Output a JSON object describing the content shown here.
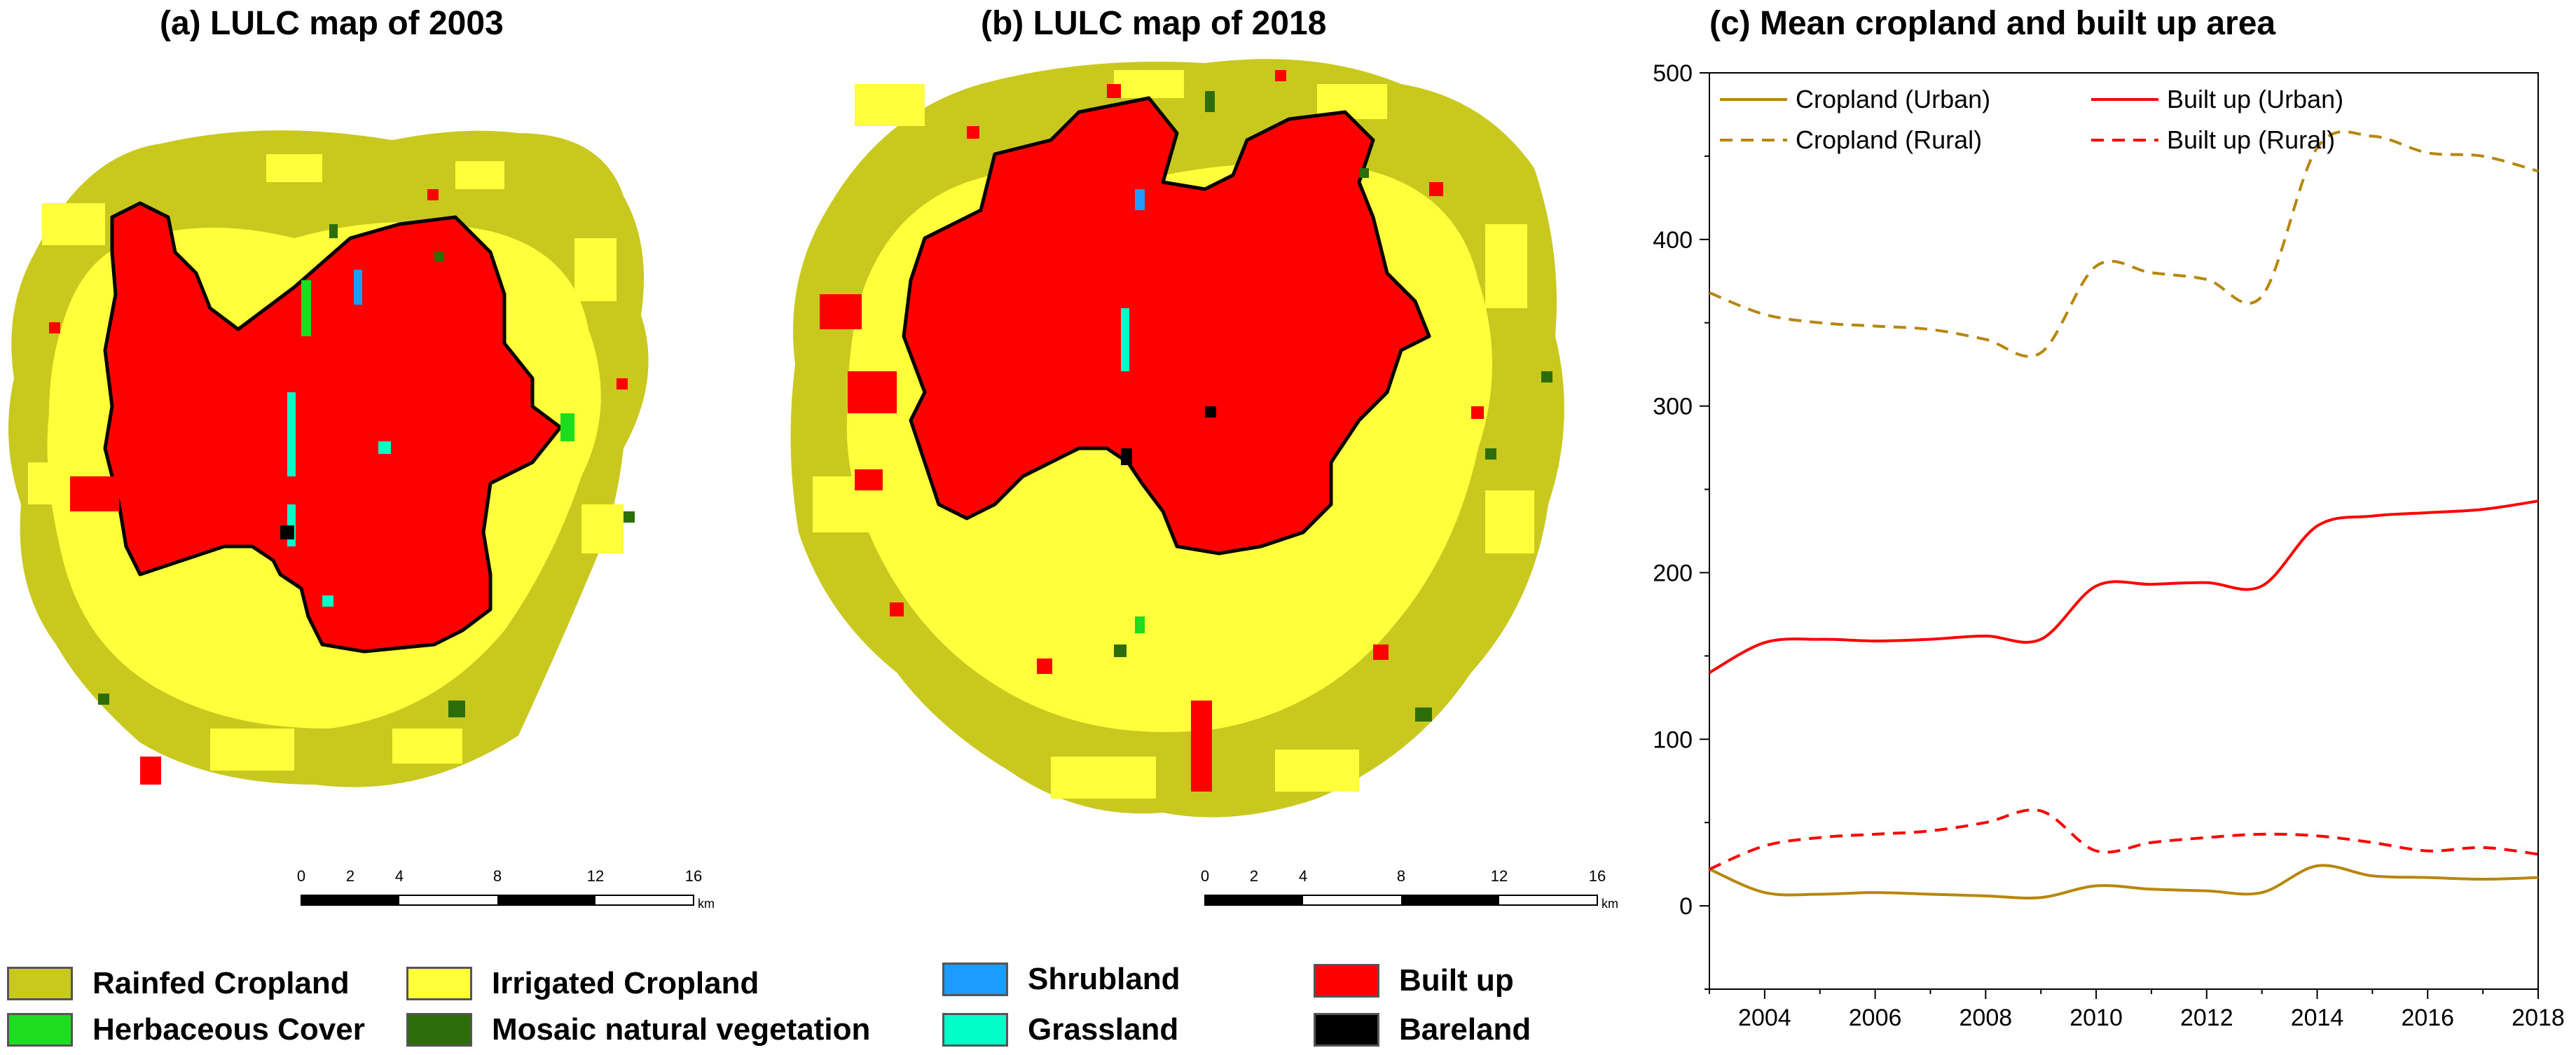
{
  "panels": {
    "a_title": "(a) LULC map of 2003",
    "b_title": "(b) LULC map of 2018",
    "c_title": "(c) Mean cropland and built up area"
  },
  "scale_bar": {
    "ticks": [
      "0",
      "2",
      "4",
      "8",
      "12",
      "16"
    ],
    "unit": "km"
  },
  "legend": [
    {
      "label": "Rainfed Cropland",
      "color": "#c8c81e"
    },
    {
      "label": "Irrigated Cropland",
      "color": "#ffff3c"
    },
    {
      "label": "Shrubland",
      "color": "#1e9bff"
    },
    {
      "label": "Built up",
      "color": "#ff0000"
    },
    {
      "label": "Herbaceous Cover",
      "color": "#1edc1e"
    },
    {
      "label": "Mosaic natural vegetation",
      "color": "#2d6e0a"
    },
    {
      "label": "Grassland",
      "color": "#00ffc8"
    },
    {
      "label": "Bareland",
      "color": "#000000"
    }
  ],
  "chart_data": {
    "type": "line",
    "title": "(c) Mean cropland and built up area",
    "xlabel": "",
    "ylabel": "",
    "xlim": [
      2003,
      2018
    ],
    "ylim": [
      -50,
      500
    ],
    "xticks": [
      2004,
      2006,
      2008,
      2010,
      2012,
      2014,
      2016,
      2018
    ],
    "yticks": [
      0,
      100,
      200,
      300,
      400,
      500
    ],
    "legend_position": "top",
    "series": [
      {
        "name": "Cropland (Urban)",
        "color": "#b8860b",
        "dash": "solid",
        "x": [
          2003,
          2004,
          2005,
          2006,
          2007,
          2008,
          2009,
          2010,
          2011,
          2012,
          2013,
          2014,
          2015,
          2016,
          2017,
          2018
        ],
        "values": [
          22,
          8,
          7,
          8,
          7,
          6,
          5,
          12,
          10,
          9,
          8,
          24,
          18,
          17,
          16,
          17
        ]
      },
      {
        "name": "Built up (Urban)",
        "color": "#ff0000",
        "dash": "solid",
        "x": [
          2003,
          2004,
          2005,
          2006,
          2007,
          2008,
          2009,
          2010,
          2011,
          2012,
          2013,
          2014,
          2015,
          2016,
          2017,
          2018
        ],
        "values": [
          140,
          158,
          160,
          159,
          160,
          162,
          160,
          192,
          193,
          194,
          192,
          228,
          234,
          236,
          238,
          243
        ]
      },
      {
        "name": "Cropland (Rural)",
        "color": "#b8860b",
        "dash": "dashed",
        "x": [
          2003,
          2004,
          2005,
          2006,
          2007,
          2008,
          2009,
          2010,
          2011,
          2012,
          2013,
          2014,
          2015,
          2016,
          2017,
          2018
        ],
        "values": [
          368,
          355,
          350,
          348,
          346,
          340,
          332,
          384,
          380,
          376,
          366,
          455,
          462,
          452,
          450,
          441
        ]
      },
      {
        "name": "Built up (Rural)",
        "color": "#ff0000",
        "dash": "dashed",
        "x": [
          2003,
          2004,
          2005,
          2006,
          2007,
          2008,
          2009,
          2010,
          2011,
          2012,
          2013,
          2014,
          2015,
          2016,
          2017,
          2018
        ],
        "values": [
          22,
          36,
          41,
          43,
          45,
          50,
          57,
          33,
          38,
          41,
          43,
          42,
          38,
          33,
          35,
          31
        ]
      }
    ]
  }
}
